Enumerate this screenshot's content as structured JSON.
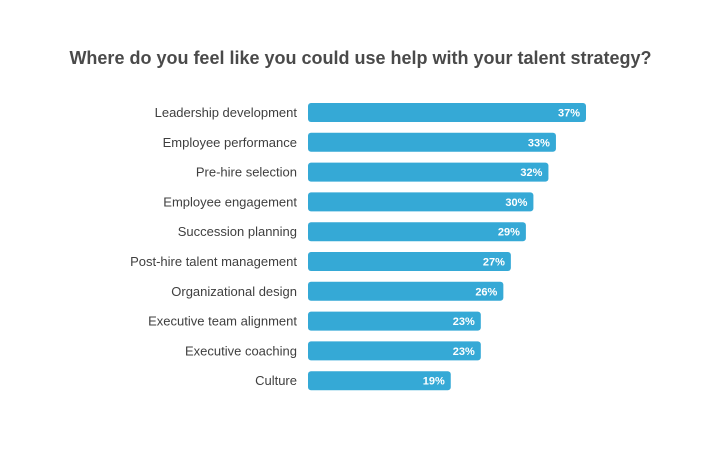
{
  "chart_data": {
    "type": "bar",
    "orientation": "horizontal",
    "title": "Where do you feel like you could use help with your talent strategy?",
    "categories": [
      "Leadership development",
      "Employee performance",
      "Pre-hire selection",
      "Employee engagement",
      "Succession planning",
      "Post-hire talent management",
      "Organizational design",
      "Executive team alignment",
      "Executive coaching",
      "Culture"
    ],
    "values": [
      37,
      33,
      32,
      30,
      29,
      27,
      26,
      23,
      23,
      19
    ],
    "value_labels": [
      "37%",
      "33%",
      "32%",
      "30%",
      "29%",
      "27%",
      "26%",
      "23%",
      "23%",
      "19%"
    ],
    "unit": "%",
    "bar_color": "#35a9d6",
    "xlabel": "",
    "ylabel": "",
    "xlim": [
      0,
      37
    ],
    "grid": false,
    "legend": "none"
  }
}
